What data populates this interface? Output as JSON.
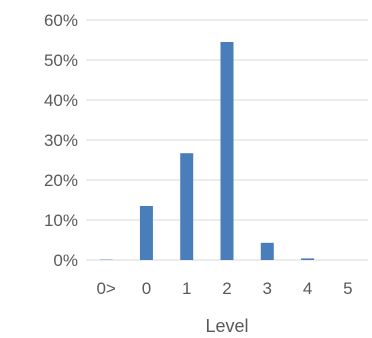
{
  "chart_data": {
    "type": "bar",
    "categories": [
      "0>",
      "0",
      "1",
      "2",
      "3",
      "4",
      "5"
    ],
    "values": [
      0.1,
      13.5,
      26.7,
      54.5,
      4.3,
      0.4,
      0.0
    ],
    "ylim": [
      0,
      60
    ],
    "yticks": [
      "0%",
      "10%",
      "20%",
      "30%",
      "40%",
      "50%",
      "60%"
    ],
    "xlabel": "Level",
    "ylabel": "",
    "grid": true,
    "legend": "none",
    "bar_color": "#4a7ebb",
    "axis_color": "#d9d9d9"
  }
}
